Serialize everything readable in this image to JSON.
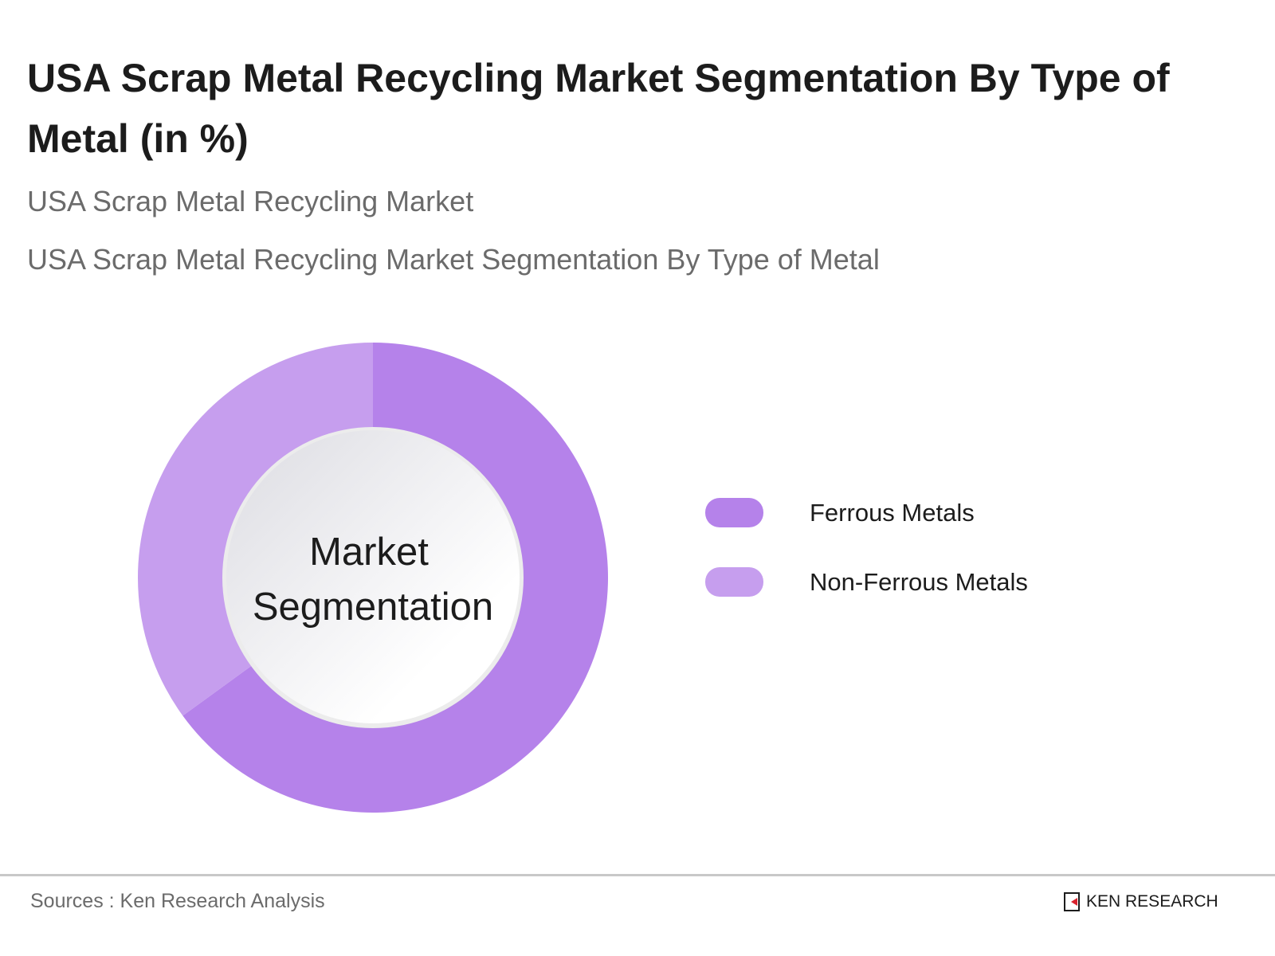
{
  "header": {
    "title": "USA Scrap Metal Recycling Market Segmentation By Type of Metal (in %)",
    "subtitle1": "USA Scrap Metal Recycling Market",
    "subtitle2": "USA Scrap Metal Recycling Market Segmentation By Type of Metal"
  },
  "chart_data": {
    "type": "pie",
    "subtype": "donut",
    "title": "USA Scrap Metal Recycling Market Segmentation By Type of Metal (in %)",
    "center_label": [
      "Market",
      "Segmentation"
    ],
    "categories": [
      "Ferrous Metals",
      "Non-Ferrous Metals"
    ],
    "values": [
      65,
      35
    ],
    "colors": [
      "#b582ea",
      "#c69eee"
    ],
    "legend_position": "right"
  },
  "footer": {
    "source": "Sources : Ken Research Analysis",
    "logo_text": "KEN RESEARCH"
  }
}
